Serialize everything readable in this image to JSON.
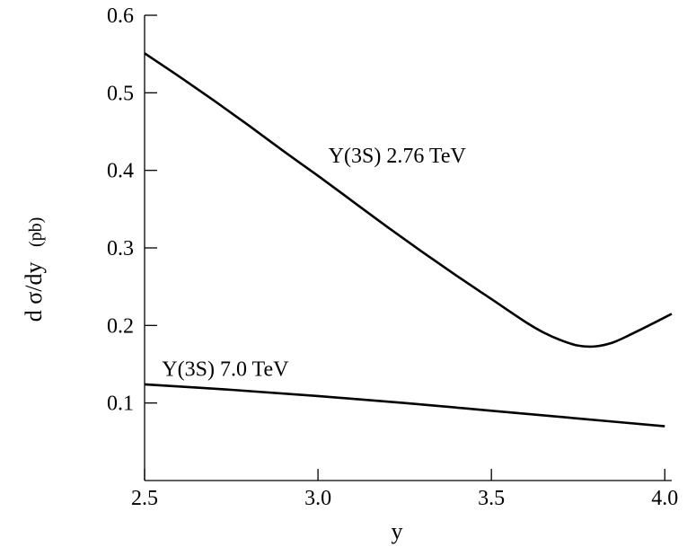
{
  "chart_data": {
    "type": "line",
    "title": "",
    "xlabel": "y",
    "ylabel": "d σ/dy",
    "ylabel_unit": "(pb)",
    "xlim": [
      2.5,
      4.02
    ],
    "ylim": [
      0.0,
      0.6
    ],
    "x_ticks": [
      2.5,
      3.0,
      3.5,
      4.0
    ],
    "x_tick_labels": [
      "2.5",
      "3.0",
      "3.5",
      "4.0"
    ],
    "y_ticks": [
      0.1,
      0.2,
      0.3,
      0.4,
      0.5,
      0.6
    ],
    "y_tick_labels": [
      "0.1",
      "0.2",
      "0.3",
      "0.4",
      "0.5",
      "0.6"
    ],
    "grid": false,
    "series": [
      {
        "label": "Y(3S)  2.76 TeV",
        "x": [
          2.5,
          2.6,
          2.7,
          2.8,
          2.9,
          3.0,
          3.1,
          3.2,
          3.3,
          3.4,
          3.5,
          3.6,
          3.65,
          3.7,
          3.75,
          3.8,
          3.85,
          3.9,
          3.95,
          4.02
        ],
        "values": [
          0.551,
          0.521,
          0.49,
          0.458,
          0.425,
          0.393,
          0.36,
          0.327,
          0.295,
          0.264,
          0.234,
          0.204,
          0.191,
          0.181,
          0.174,
          0.173,
          0.178,
          0.188,
          0.199,
          0.215
        ]
      },
      {
        "label": "Y(3S)  7.0 TeV",
        "x": [
          2.5,
          2.75,
          3.0,
          3.25,
          3.5,
          3.75,
          4.0
        ],
        "values": [
          0.124,
          0.117,
          0.109,
          0.1,
          0.09,
          0.08,
          0.07
        ]
      }
    ],
    "annotations": [
      {
        "text": "Y(3S)  2.76 TeV",
        "x": 3.03,
        "y": 0.41
      },
      {
        "text": "Y(3S)  7.0 TeV",
        "x": 2.55,
        "y": 0.135
      }
    ]
  }
}
